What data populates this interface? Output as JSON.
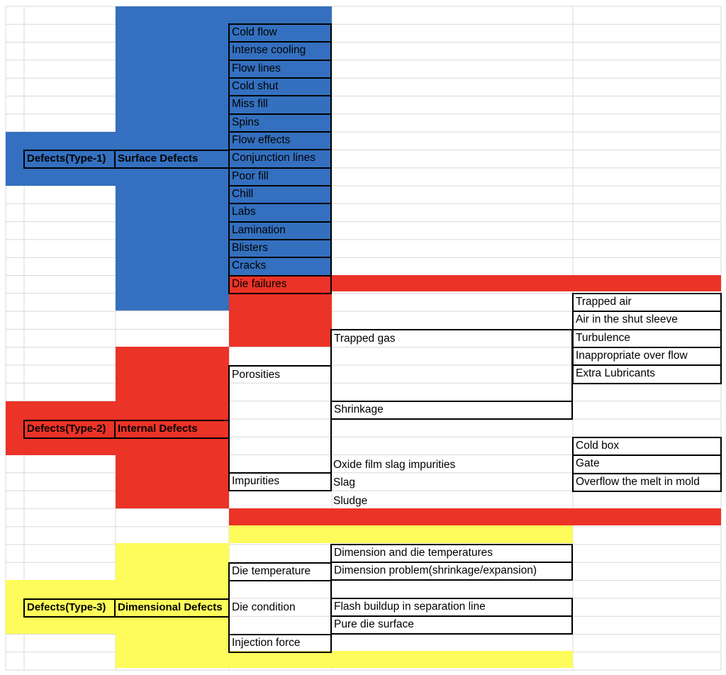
{
  "colors": {
    "type1": "#3470BF",
    "type2": "#EB3327",
    "type3": "#FDFC5A",
    "grid": "#d8d8d8",
    "border": "#000000"
  },
  "type1": {
    "root": "Defects(Type-1)",
    "category": "Surface Defects",
    "items": [
      "Cold flow",
      "Intense cooling",
      "Flow lines",
      "Cold shut",
      "Miss fill",
      "Spins",
      "Flow effects",
      "Conjunction lines",
      "Poor fill",
      "Chill",
      "Labs",
      "Lamination",
      "Blisters",
      "Cracks",
      "Die failures"
    ]
  },
  "type2": {
    "root": "Defects(Type-2)",
    "category": "Internal Defects",
    "porosities": "Porosities",
    "impurities": "Impurities",
    "trapped_gas": "Trapped gas",
    "trapped_gas_causes": [
      "Trapped air",
      "Air in the shut sleeve",
      "Turbulence",
      "Inappropriate over flow",
      "Extra Lubricants"
    ],
    "shrinkage": "Shrinkage",
    "oxide_film": "Oxide film slag impurities",
    "slag": "Slag",
    "sludge": "Sludge",
    "impurity_causes": [
      "Cold box",
      "Gate",
      "Overflow the melt in mold"
    ]
  },
  "type3": {
    "root": "Defects(Type-3)",
    "category": "Dimensional Defects",
    "die_temperature": "Die temperature",
    "die_condition": "Die condition",
    "injection_force": "Injection force",
    "die_temp_effects": [
      "Dimension and die temperatures",
      "Dimension problem(shrinkage/expansion)"
    ],
    "die_condition_effects": [
      "Flash buildup in separation line",
      "Pure die surface"
    ]
  }
}
